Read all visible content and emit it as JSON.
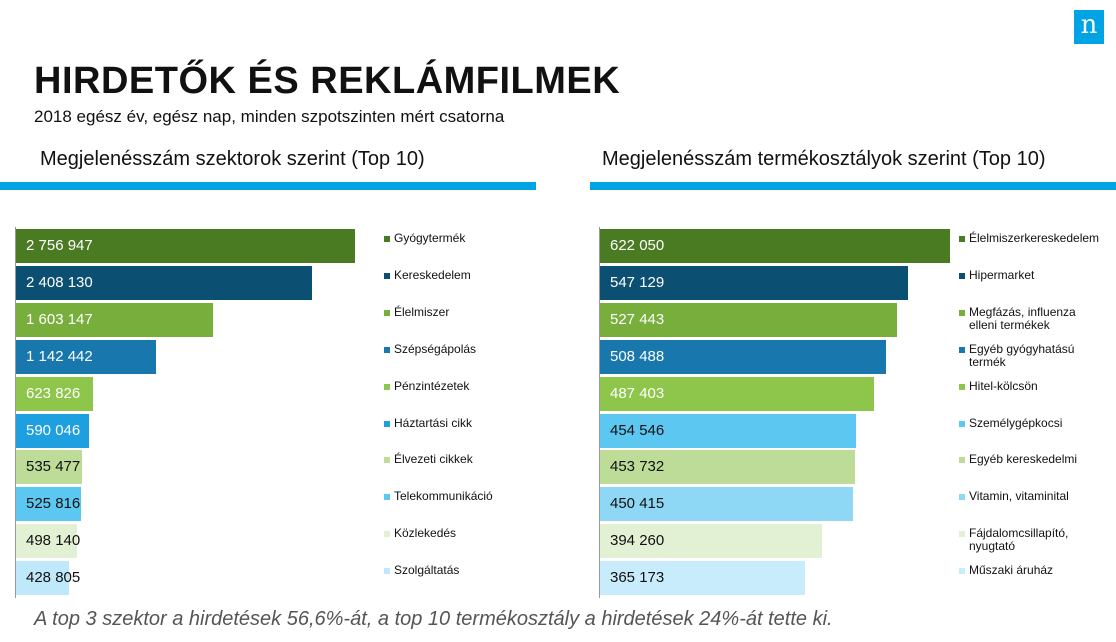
{
  "header": {
    "logo_letter": "n",
    "title": "HIRDETŐK ÉS REKLÁMFILMEK",
    "subtitle": "2018 egész év, egész nap, minden szpotszinten mért csatorna"
  },
  "footnote": "A top 3 szektor a hirdetések 56,6%-át, a top 10 termékosztály a hirdetések 24%-át tette ki.",
  "chart_data": [
    {
      "type": "bar",
      "orientation": "horizontal",
      "title": "Megjelenésszám szektorok szerint (Top 10)",
      "legend_position": "right",
      "series": [
        {
          "points": [
            {
              "category": "Gyógytermék",
              "value": 2756947,
              "label": "2 756 947",
              "color": "#4a7a22"
            },
            {
              "category": "Kereskedelem",
              "value": 2408130,
              "label": "2 408 130",
              "color": "#0b4f73"
            },
            {
              "category": "Élelmiszer",
              "value": 1603147,
              "label": "1 603 147",
              "color": "#78ae3c"
            },
            {
              "category": "Szépségápolás",
              "value": 1142442,
              "label": "1 142 442",
              "color": "#1877ad"
            },
            {
              "category": "Pénzintézetek",
              "value": 623826,
              "label": "623 826",
              "color": "#8dc64a"
            },
            {
              "category": "Háztartási cikk",
              "value": 590046,
              "label": "590 046",
              "color": "#1e9fe0"
            },
            {
              "category": "Élvezeti cikkek",
              "value": 535477,
              "label": "535 477",
              "color": "#bcdc98"
            },
            {
              "category": "Telekommunikáció",
              "value": 525816,
              "label": "525 816",
              "color": "#5cc8f2"
            },
            {
              "category": "Közlekedés",
              "value": 498140,
              "label": "498 140",
              "color": "#e2f0d4"
            },
            {
              "category": "Szolgáltatás",
              "value": 428805,
              "label": "428 805",
              "color": "#bfe8fa"
            }
          ]
        }
      ]
    },
    {
      "type": "bar",
      "orientation": "horizontal",
      "title": "Megjelenésszám termékosztályok szerint (Top 10)",
      "legend_position": "right",
      "series": [
        {
          "points": [
            {
              "category": "Élelmiszerkereskedelem",
              "value": 622050,
              "label": "622 050",
              "color": "#4a7a22"
            },
            {
              "category": "Hipermarket",
              "value": 547129,
              "label": "547 129",
              "color": "#0b4f73"
            },
            {
              "category": "Megfázás, influenza\nelleni termékek",
              "value": 527443,
              "label": "527 443",
              "color": "#78ae3c"
            },
            {
              "category": "Egyéb gyógyhatású\ntermék",
              "value": 508488,
              "label": "508 488",
              "color": "#1877ad"
            },
            {
              "category": "Hitel-kölcsön",
              "value": 487403,
              "label": "487 403",
              "color": "#8dc64a"
            },
            {
              "category": "Személygépkocsi",
              "value": 454546,
              "label": "454 546",
              "color": "#5cc8f2"
            },
            {
              "category": "Egyéb kereskedelmi",
              "value": 453732,
              "label": "453 732",
              "color": "#bcdc98"
            },
            {
              "category": "Vitamin, vitaminital",
              "value": 450415,
              "label": "450 415",
              "color": "#8fd8f5"
            },
            {
              "category": "Fájdalomcsillapító,\nnyugtató",
              "value": 394260,
              "label": "394 260",
              "color": "#e2f0d4"
            },
            {
              "category": "Műszaki áruház",
              "value": 365173,
              "label": "365 173",
              "color": "#c8ecfb"
            }
          ]
        }
      ]
    }
  ]
}
